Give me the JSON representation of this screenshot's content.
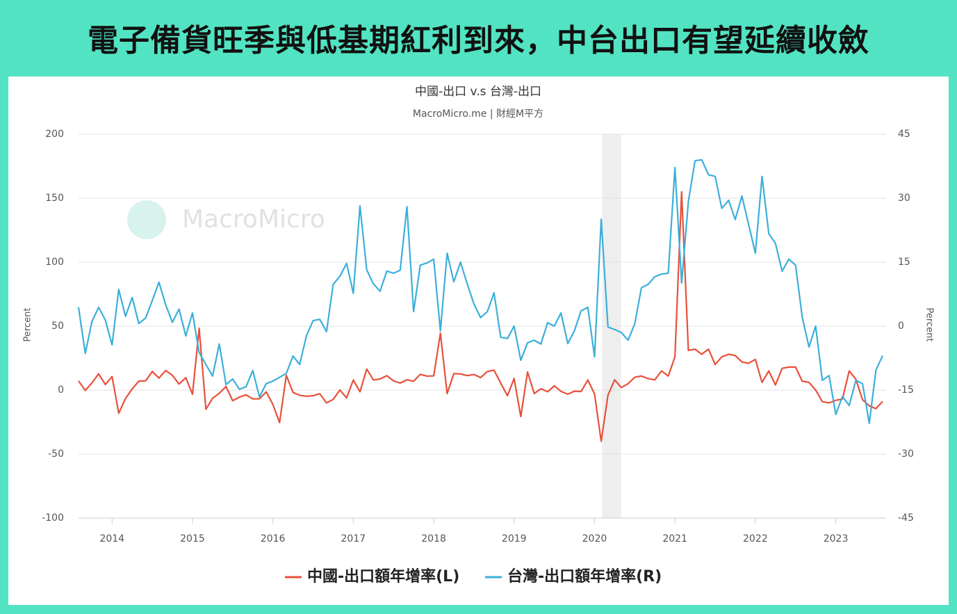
{
  "header": {
    "title": "電子備貨旺季與低基期紅利到來，中台出口有望延續收斂"
  },
  "chart_data": {
    "type": "line",
    "title": "中國-出口 v.s 台灣-出口",
    "subtitle": "MacroMicro.me | 財經M平方",
    "watermark": "MacroMicro",
    "ylabel": "Percent",
    "y2label": "Percent",
    "x": [
      2013.583,
      2013.667,
      2013.75,
      2013.833,
      2013.917,
      2014,
      2014.083,
      2014.167,
      2014.25,
      2014.333,
      2014.417,
      2014.5,
      2014.583,
      2014.667,
      2014.75,
      2014.833,
      2014.917,
      2015,
      2015.083,
      2015.167,
      2015.25,
      2015.333,
      2015.417,
      2015.5,
      2015.583,
      2015.667,
      2015.75,
      2015.833,
      2015.917,
      2016,
      2016.083,
      2016.167,
      2016.25,
      2016.333,
      2016.417,
      2016.5,
      2016.583,
      2016.667,
      2016.75,
      2016.833,
      2016.917,
      2017,
      2017.083,
      2017.167,
      2017.25,
      2017.333,
      2017.417,
      2017.5,
      2017.583,
      2017.667,
      2017.75,
      2017.833,
      2017.917,
      2018,
      2018.083,
      2018.167,
      2018.25,
      2018.333,
      2018.417,
      2018.5,
      2018.583,
      2018.667,
      2018.75,
      2018.833,
      2018.917,
      2019,
      2019.083,
      2019.167,
      2019.25,
      2019.333,
      2019.417,
      2019.5,
      2019.583,
      2019.667,
      2019.75,
      2019.833,
      2019.917,
      2020,
      2020.083,
      2020.167,
      2020.25,
      2020.333,
      2020.417,
      2020.5,
      2020.583,
      2020.667,
      2020.75,
      2020.833,
      2020.917,
      2021,
      2021.083,
      2021.167,
      2021.25,
      2021.333,
      2021.417,
      2021.5,
      2021.583,
      2021.667,
      2021.75,
      2021.833,
      2021.917,
      2022,
      2022.083,
      2022.167,
      2022.25,
      2022.333,
      2022.417,
      2022.5,
      2022.583,
      2022.667,
      2022.75,
      2022.833,
      2022.917,
      2023,
      2023.083,
      2023.167,
      2023.25,
      2023.333,
      2023.417,
      2023.5,
      2023.583
    ],
    "series": [
      {
        "name": "中國-出口額年增率(L)",
        "color": "#e8503a",
        "axis": "y",
        "values": [
          7.2,
          -0.3,
          5.6,
          12.7,
          4.3,
          10.6,
          -18.1,
          -6.6,
          0.9,
          7.0,
          7.2,
          14.5,
          9.4,
          15.3,
          11.6,
          4.7,
          9.7,
          -3.3,
          48.3,
          -15,
          -6.4,
          -2.5,
          2.8,
          -8.3,
          -5.5,
          -3.7,
          -6.9,
          -6.8,
          -1.4,
          -11.2,
          -25.4,
          11.5,
          -1.8,
          -4.1,
          -4.8,
          -4.4,
          -2.8,
          -10,
          -7.3,
          0.1,
          -6.1,
          7.9,
          -1.3,
          16.4,
          8,
          8.7,
          11.3,
          7.2,
          5.5,
          8.1,
          6.9,
          12.3,
          10.9,
          11.1,
          44.5,
          -2.7,
          12.9,
          12.6,
          11.3,
          12.2,
          9.8,
          14.5,
          15.6,
          5.4,
          -4.4,
          9.1,
          -20.7,
          14.2,
          -2.7,
          1.1,
          -1.3,
          3.3,
          -1,
          -3.2,
          -0.9,
          -1.1,
          7.9,
          -3,
          -40,
          -4,
          8,
          2,
          5,
          10,
          11,
          9,
          8,
          15,
          11,
          26,
          155,
          31,
          32,
          28,
          32,
          20,
          26,
          28,
          27,
          22,
          21,
          24,
          6,
          15,
          4,
          17,
          18,
          18,
          7,
          6,
          0,
          -9,
          -10,
          -8,
          -7,
          15,
          8.5,
          -7.5,
          -12.4,
          -14.5,
          -8.8
        ]
      },
      {
        "name": "台灣-出口額年增率(R)",
        "color": "#3bafda",
        "axis": "y2",
        "values": [
          4.4,
          -6.4,
          1.1,
          4.4,
          1.4,
          -4.4,
          8.6,
          2.3,
          6.7,
          0.6,
          1.9,
          6,
          10.3,
          5,
          0.9,
          4,
          -2.3,
          3.1,
          -6.2,
          -9,
          -11.7,
          -4.2,
          -13.7,
          -12.4,
          -14.8,
          -14.2,
          -10.4,
          -16.6,
          -13.5,
          -12.9,
          -12,
          -11.1,
          -7,
          -9,
          -2.3,
          1.3,
          1.6,
          -1.3,
          9.8,
          11.7,
          14.7,
          7.7,
          28.2,
          13.2,
          9.9,
          8.2,
          12.9,
          12.4,
          13.1,
          28,
          3.4,
          14.3,
          14.8,
          15.7,
          -1.1,
          17.1,
          10.4,
          15,
          9.9,
          5.2,
          2,
          3.4,
          7.8,
          -2.6,
          -2.9,
          0,
          -8,
          -3.9,
          -3.3,
          -4.2,
          0.8,
          0,
          3.1,
          -4.1,
          -1.1,
          3.6,
          4.4,
          -7.2,
          25.1,
          -0.2,
          -0.8,
          -1.5,
          -3.3,
          0.5,
          9,
          9.8,
          11.6,
          12.2,
          12.4,
          37.2,
          10.1,
          29.2,
          38.8,
          39,
          35.5,
          35.1,
          27.6,
          29.5,
          25,
          30.5,
          23.8,
          17.1,
          35.1,
          21.7,
          19.4,
          12.9,
          15.7,
          14.3,
          2.1,
          -4.9,
          0,
          -12.7,
          -11.6,
          -20.7,
          -16.5,
          -18.6,
          -12.7,
          -13.5,
          -22.8,
          -10.3,
          -6.9
        ]
      }
    ],
    "shaded_range": [
      2020.095,
      2020.33
    ],
    "xlim": [
      2013.583,
      2023.583
    ],
    "xticks": [
      2014,
      2015,
      2016,
      2017,
      2018,
      2019,
      2020,
      2021,
      2022,
      2023
    ],
    "ylim": [
      -100,
      200
    ],
    "yticks": [
      200,
      150,
      100,
      50,
      0,
      -50,
      -100
    ],
    "y2lim": [
      -45,
      45
    ],
    "y2ticks": [
      45,
      30,
      15,
      0,
      -15,
      -30,
      -45
    ],
    "grid": true,
    "legend": "bottom"
  }
}
